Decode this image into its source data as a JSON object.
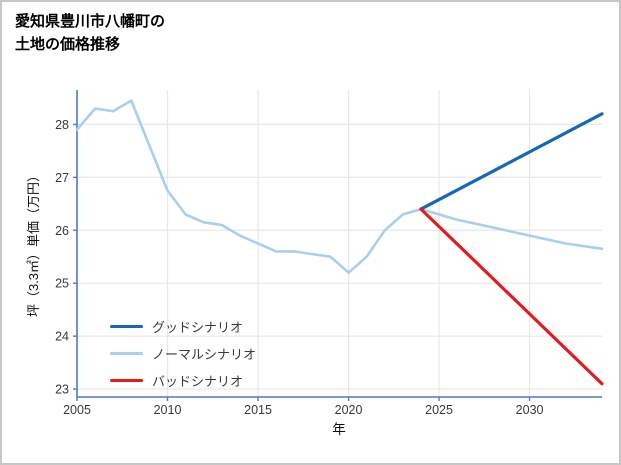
{
  "title": {
    "line1": "愛知県豊川市八幡町の",
    "line2": "土地の価格推移"
  },
  "chart_data": {
    "type": "line",
    "title": "愛知県豊川市八幡町の土地の価格推移",
    "xlabel": "年",
    "ylabel": "坪（3.3㎡）単価（万円）",
    "xlim": [
      2005,
      2034
    ],
    "ylim": [
      22.85,
      28.65
    ],
    "xticks": [
      2005,
      2010,
      2015,
      2020,
      2025,
      2030
    ],
    "yticks": [
      23,
      24,
      25,
      26,
      27,
      28
    ],
    "grid": true,
    "legend_position": "lower-left",
    "style": {
      "spine_color": "#4a7dbf",
      "grid_color": "#e8e8e8",
      "tick_label_color": "#3a3a3a",
      "axis_label_color": "#111111"
    },
    "series": [
      {
        "id": "good",
        "name": "グッドシナリオ",
        "color": "#1668b0",
        "width": 3.2,
        "x": [
          2024,
          2034
        ],
        "y": [
          26.4,
          28.2
        ]
      },
      {
        "id": "normal",
        "name": "ノーマルシナリオ",
        "color": "#a9cfee",
        "width": 2.6,
        "x": [
          2005,
          2006,
          2007,
          2008,
          2009,
          2010,
          2011,
          2012,
          2013,
          2014,
          2015,
          2016,
          2017,
          2018,
          2019,
          2020,
          2021,
          2022,
          2023,
          2024,
          2026,
          2028,
          2030,
          2032,
          2034
        ],
        "y": [
          27.9,
          28.3,
          28.25,
          28.45,
          27.6,
          26.75,
          26.3,
          26.15,
          26.1,
          25.9,
          25.75,
          25.6,
          25.6,
          25.55,
          25.5,
          25.2,
          25.5,
          26.0,
          26.3,
          26.4,
          26.2,
          26.05,
          25.9,
          25.75,
          25.65
        ]
      },
      {
        "id": "bad",
        "name": "バッドシナリオ",
        "color": "#e41a1c",
        "width": 3.2,
        "x": [
          2024,
          2034
        ],
        "y": [
          26.4,
          23.1
        ]
      }
    ]
  }
}
